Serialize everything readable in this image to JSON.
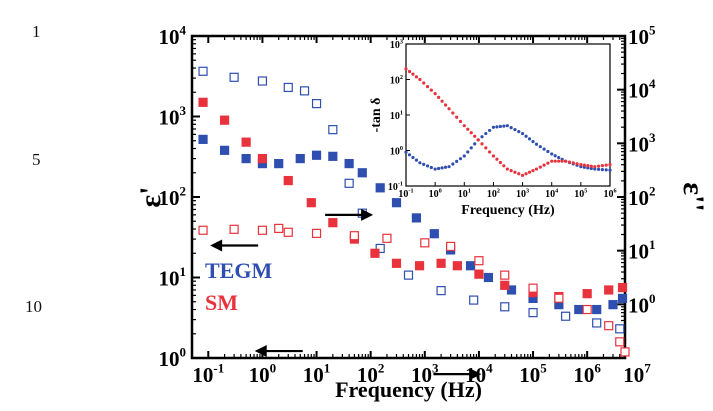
{
  "line_numbers": [
    "1",
    "5",
    "10"
  ],
  "chart_data": [
    {
      "type": "scatter",
      "title": "",
      "xlabel": "Frequency (Hz)",
      "ylabel_left": "ε'",
      "ylabel_right": "ε''",
      "xscale": "log",
      "yscale": "log",
      "xlim": [
        0.05,
        5000000
      ],
      "ylim_left": [
        1,
        10000
      ],
      "ylim_right": [
        0.1,
        100000
      ],
      "x_ticks": [
        "10-1",
        "100",
        "101",
        "102",
        "103",
        "104",
        "105",
        "106",
        "107"
      ],
      "y_ticks_left": [
        "100",
        "101",
        "102",
        "103",
        "104"
      ],
      "y_ticks_right": [
        "10-1",
        "100",
        "101",
        "102",
        "103",
        "104",
        "105"
      ],
      "legend": [
        {
          "label": "TEGM",
          "color": "#2f4fb0"
        },
        {
          "label": "SM",
          "color": "#e8323c"
        }
      ],
      "arrows": [
        {
          "direction": "left",
          "at_x": 2,
          "at_y": 1.22
        },
        {
          "direction": "right",
          "at_x": 40,
          "at_y": 60
        },
        {
          "direction": "left",
          "at_x": 0.3,
          "at_y": 25
        },
        {
          "direction": "right",
          "at_x": 4000,
          "at_y": 0.63
        }
      ],
      "series": [
        {
          "name": "TEGM ε'",
          "color": "#2f4fb0",
          "marker": "square",
          "filled": true,
          "axis": "left",
          "points": [
            [
              0.08,
              520
            ],
            [
              0.2,
              380
            ],
            [
              0.5,
              300
            ],
            [
              1,
              260
            ],
            [
              2,
              260
            ],
            [
              5,
              300
            ],
            [
              10,
              330
            ],
            [
              20,
              320
            ],
            [
              40,
              260
            ],
            [
              70,
              200
            ],
            [
              150,
              130
            ],
            [
              300,
              85
            ],
            [
              700,
              55
            ],
            [
              1500,
              35
            ],
            [
              3000,
              22
            ],
            [
              7000,
              14
            ],
            [
              15000,
              10
            ],
            [
              40000,
              7
            ],
            [
              100000,
              5.5
            ],
            [
              300000,
              4.6
            ],
            [
              700000,
              4
            ],
            [
              1500000,
              4
            ],
            [
              3000000,
              4.6
            ],
            [
              4500000,
              5.5
            ]
          ]
        },
        {
          "name": "TEGM ε''",
          "color": "#2f4fb0",
          "marker": "square",
          "filled": false,
          "axis": "right",
          "points": [
            [
              0.08,
              22000
            ],
            [
              0.3,
              17000
            ],
            [
              1,
              14500
            ],
            [
              3,
              11000
            ],
            [
              6,
              9500
            ],
            [
              10,
              5500
            ],
            [
              20,
              1800
            ],
            [
              40,
              180
            ],
            [
              70,
              50
            ],
            [
              150,
              11
            ],
            [
              500,
              3.5
            ],
            [
              2000,
              1.8
            ],
            [
              8000,
              1.2
            ],
            [
              30000,
              0.9
            ],
            [
              100000,
              0.7
            ],
            [
              400000,
              0.6
            ],
            [
              1500000,
              0.45
            ],
            [
              4000000,
              0.35
            ]
          ]
        },
        {
          "name": "SM ε'",
          "color": "#e8323c",
          "marker": "square",
          "filled": true,
          "axis": "left",
          "points": [
            [
              0.08,
              1500
            ],
            [
              0.2,
              900
            ],
            [
              0.5,
              480
            ],
            [
              1,
              300
            ],
            [
              3,
              160
            ],
            [
              8,
              85
            ],
            [
              20,
              48
            ],
            [
              50,
              30
            ],
            [
              120,
              20
            ],
            [
              300,
              15
            ],
            [
              800,
              14
            ],
            [
              2000,
              15
            ],
            [
              4000,
              14
            ],
            [
              10000,
              11
            ],
            [
              30000,
              8
            ],
            [
              100000,
              6.5
            ],
            [
              300000,
              5.8
            ],
            [
              1000000,
              6.3
            ],
            [
              2500000,
              7
            ],
            [
              4500000,
              7.5
            ]
          ]
        },
        {
          "name": "SM ε''",
          "color": "#e8323c",
          "marker": "square",
          "filled": false,
          "axis": "right",
          "points": [
            [
              0.08,
              24
            ],
            [
              0.3,
              25
            ],
            [
              1,
              24
            ],
            [
              2,
              26
            ],
            [
              3,
              22
            ],
            [
              10,
              21
            ],
            [
              50,
              19
            ],
            [
              200,
              17
            ],
            [
              1000,
              14
            ],
            [
              3000,
              12
            ],
            [
              10000,
              6.5
            ],
            [
              30000,
              3.5
            ],
            [
              100000,
              2
            ],
            [
              300000,
              1.3
            ],
            [
              1000000,
              0.8
            ],
            [
              2500000,
              0.4
            ],
            [
              4000000,
              0.2
            ],
            [
              5000000,
              0.13
            ]
          ]
        }
      ]
    },
    {
      "type": "scatter",
      "title": "",
      "xlabel": "Frequency (Hz)",
      "ylabel": "-tan δ",
      "xscale": "log",
      "yscale": "log",
      "xlim": [
        0.1,
        1000000
      ],
      "ylim": [
        0.1,
        1000
      ],
      "x_ticks": [
        "10-1",
        "100",
        "101",
        "102",
        "103",
        "104",
        "105",
        "106"
      ],
      "y_ticks": [
        "10-1",
        "100",
        "101",
        "102",
        "103"
      ],
      "series": [
        {
          "name": "TEGM",
          "color": "#2f4fb0",
          "marker": "dot",
          "points": [
            [
              0.1,
              0.9
            ],
            [
              0.3,
              0.45
            ],
            [
              1,
              0.3
            ],
            [
              3,
              0.35
            ],
            [
              10,
              0.7
            ],
            [
              30,
              2
            ],
            [
              100,
              4.5
            ],
            [
              300,
              5
            ],
            [
              1000,
              3
            ],
            [
              3000,
              1.5
            ],
            [
              10000,
              0.8
            ],
            [
              30000,
              0.5
            ],
            [
              100000,
              0.35
            ],
            [
              300000,
              0.3
            ],
            [
              1000000,
              0.28
            ]
          ]
        },
        {
          "name": "SM",
          "color": "#e8323c",
          "marker": "dot",
          "points": [
            [
              0.1,
              200
            ],
            [
              0.3,
              100
            ],
            [
              1,
              40
            ],
            [
              3,
              15
            ],
            [
              10,
              5
            ],
            [
              30,
              2
            ],
            [
              100,
              0.7
            ],
            [
              300,
              0.3
            ],
            [
              1000,
              0.2
            ],
            [
              3000,
              0.3
            ],
            [
              10000,
              0.5
            ],
            [
              30000,
              0.5
            ],
            [
              100000,
              0.4
            ],
            [
              300000,
              0.35
            ],
            [
              1000000,
              0.4
            ]
          ]
        }
      ]
    }
  ]
}
